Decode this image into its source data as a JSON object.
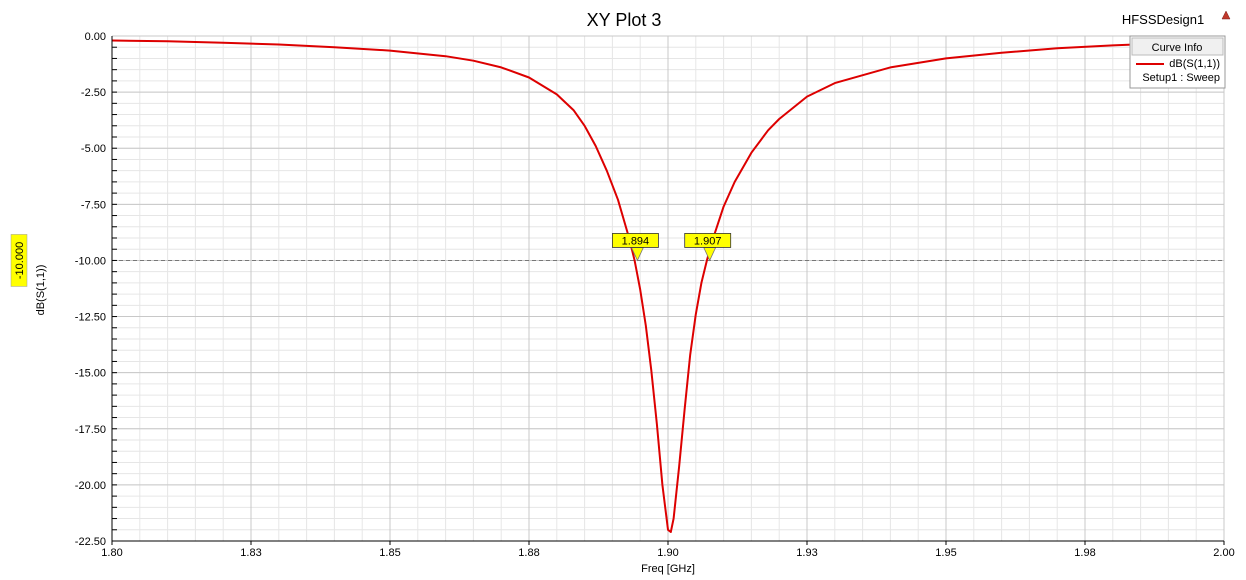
{
  "window": {
    "design_name": "HFSSDesign1",
    "design_icon": "red-triangle-icon"
  },
  "chart_data": {
    "type": "line",
    "title": "XY Plot 3",
    "xlabel": "Freq [GHz]",
    "ylabel": "dB(S(1,1))",
    "xlim": [
      1.8,
      2.0
    ],
    "ylim": [
      -22.5,
      0.0
    ],
    "x_ticks": [
      1.8,
      1.825,
      1.85,
      1.875,
      1.9,
      1.925,
      1.95,
      1.975,
      2.0
    ],
    "x_tick_labels": [
      "1.80",
      "1.83",
      "1.85",
      "1.88",
      "1.90",
      "1.93",
      "1.95",
      "1.98",
      "2.00"
    ],
    "y_ticks": [
      0.0,
      -2.5,
      -5.0,
      -7.5,
      -10.0,
      -12.5,
      -15.0,
      -17.5,
      -20.0,
      -22.5
    ],
    "y_tick_labels": [
      "0.00",
      "-2.50",
      "-5.00",
      "-7.50",
      "-10.00",
      "-12.50",
      "-15.00",
      "-17.50",
      "-20.00",
      "-22.50"
    ],
    "grid": true,
    "legend": {
      "title": "Curve Info",
      "placement": "top-right",
      "entries": [
        {
          "name": "dB(S(1,1))",
          "subtext": "Setup1 : Sweep",
          "color": "#dd0000"
        }
      ]
    },
    "series": [
      {
        "name": "dB(S(1,1))",
        "color": "#dd0000",
        "x": [
          1.8,
          1.81,
          1.82,
          1.83,
          1.84,
          1.85,
          1.86,
          1.865,
          1.87,
          1.875,
          1.88,
          1.883,
          1.885,
          1.887,
          1.889,
          1.891,
          1.893,
          1.894,
          1.895,
          1.896,
          1.897,
          1.898,
          1.899,
          1.9,
          1.9005,
          1.901,
          1.902,
          1.903,
          1.904,
          1.905,
          1.906,
          1.907,
          1.908,
          1.91,
          1.912,
          1.915,
          1.918,
          1.92,
          1.925,
          1.93,
          1.94,
          1.95,
          1.96,
          1.97,
          1.98,
          1.99,
          2.0
        ],
        "y": [
          -0.2,
          -0.23,
          -0.3,
          -0.38,
          -0.5,
          -0.65,
          -0.9,
          -1.1,
          -1.4,
          -1.85,
          -2.6,
          -3.3,
          -4.0,
          -4.9,
          -6.0,
          -7.3,
          -9.0,
          -10.0,
          -11.3,
          -12.9,
          -14.9,
          -17.3,
          -20.0,
          -22.0,
          -22.1,
          -21.5,
          -19.2,
          -16.6,
          -14.2,
          -12.4,
          -11.0,
          -10.0,
          -9.1,
          -7.6,
          -6.5,
          -5.2,
          -4.2,
          -3.7,
          -2.7,
          -2.1,
          -1.4,
          -1.0,
          -0.75,
          -0.55,
          -0.42,
          -0.32,
          -0.26
        ]
      }
    ],
    "reference_line": {
      "y": -10.0,
      "label": "-10.000",
      "style": "dashed"
    },
    "markers": [
      {
        "x": 1.8945,
        "y": -10.0,
        "label": "1.894"
      },
      {
        "x": 1.9075,
        "y": -10.0,
        "label": "1.907"
      }
    ],
    "colors": {
      "curve": "#dd0000",
      "marker_fill": "#ffff00",
      "grid_major": "#c8c8c8",
      "grid_minor": "#e6e6e6"
    }
  }
}
